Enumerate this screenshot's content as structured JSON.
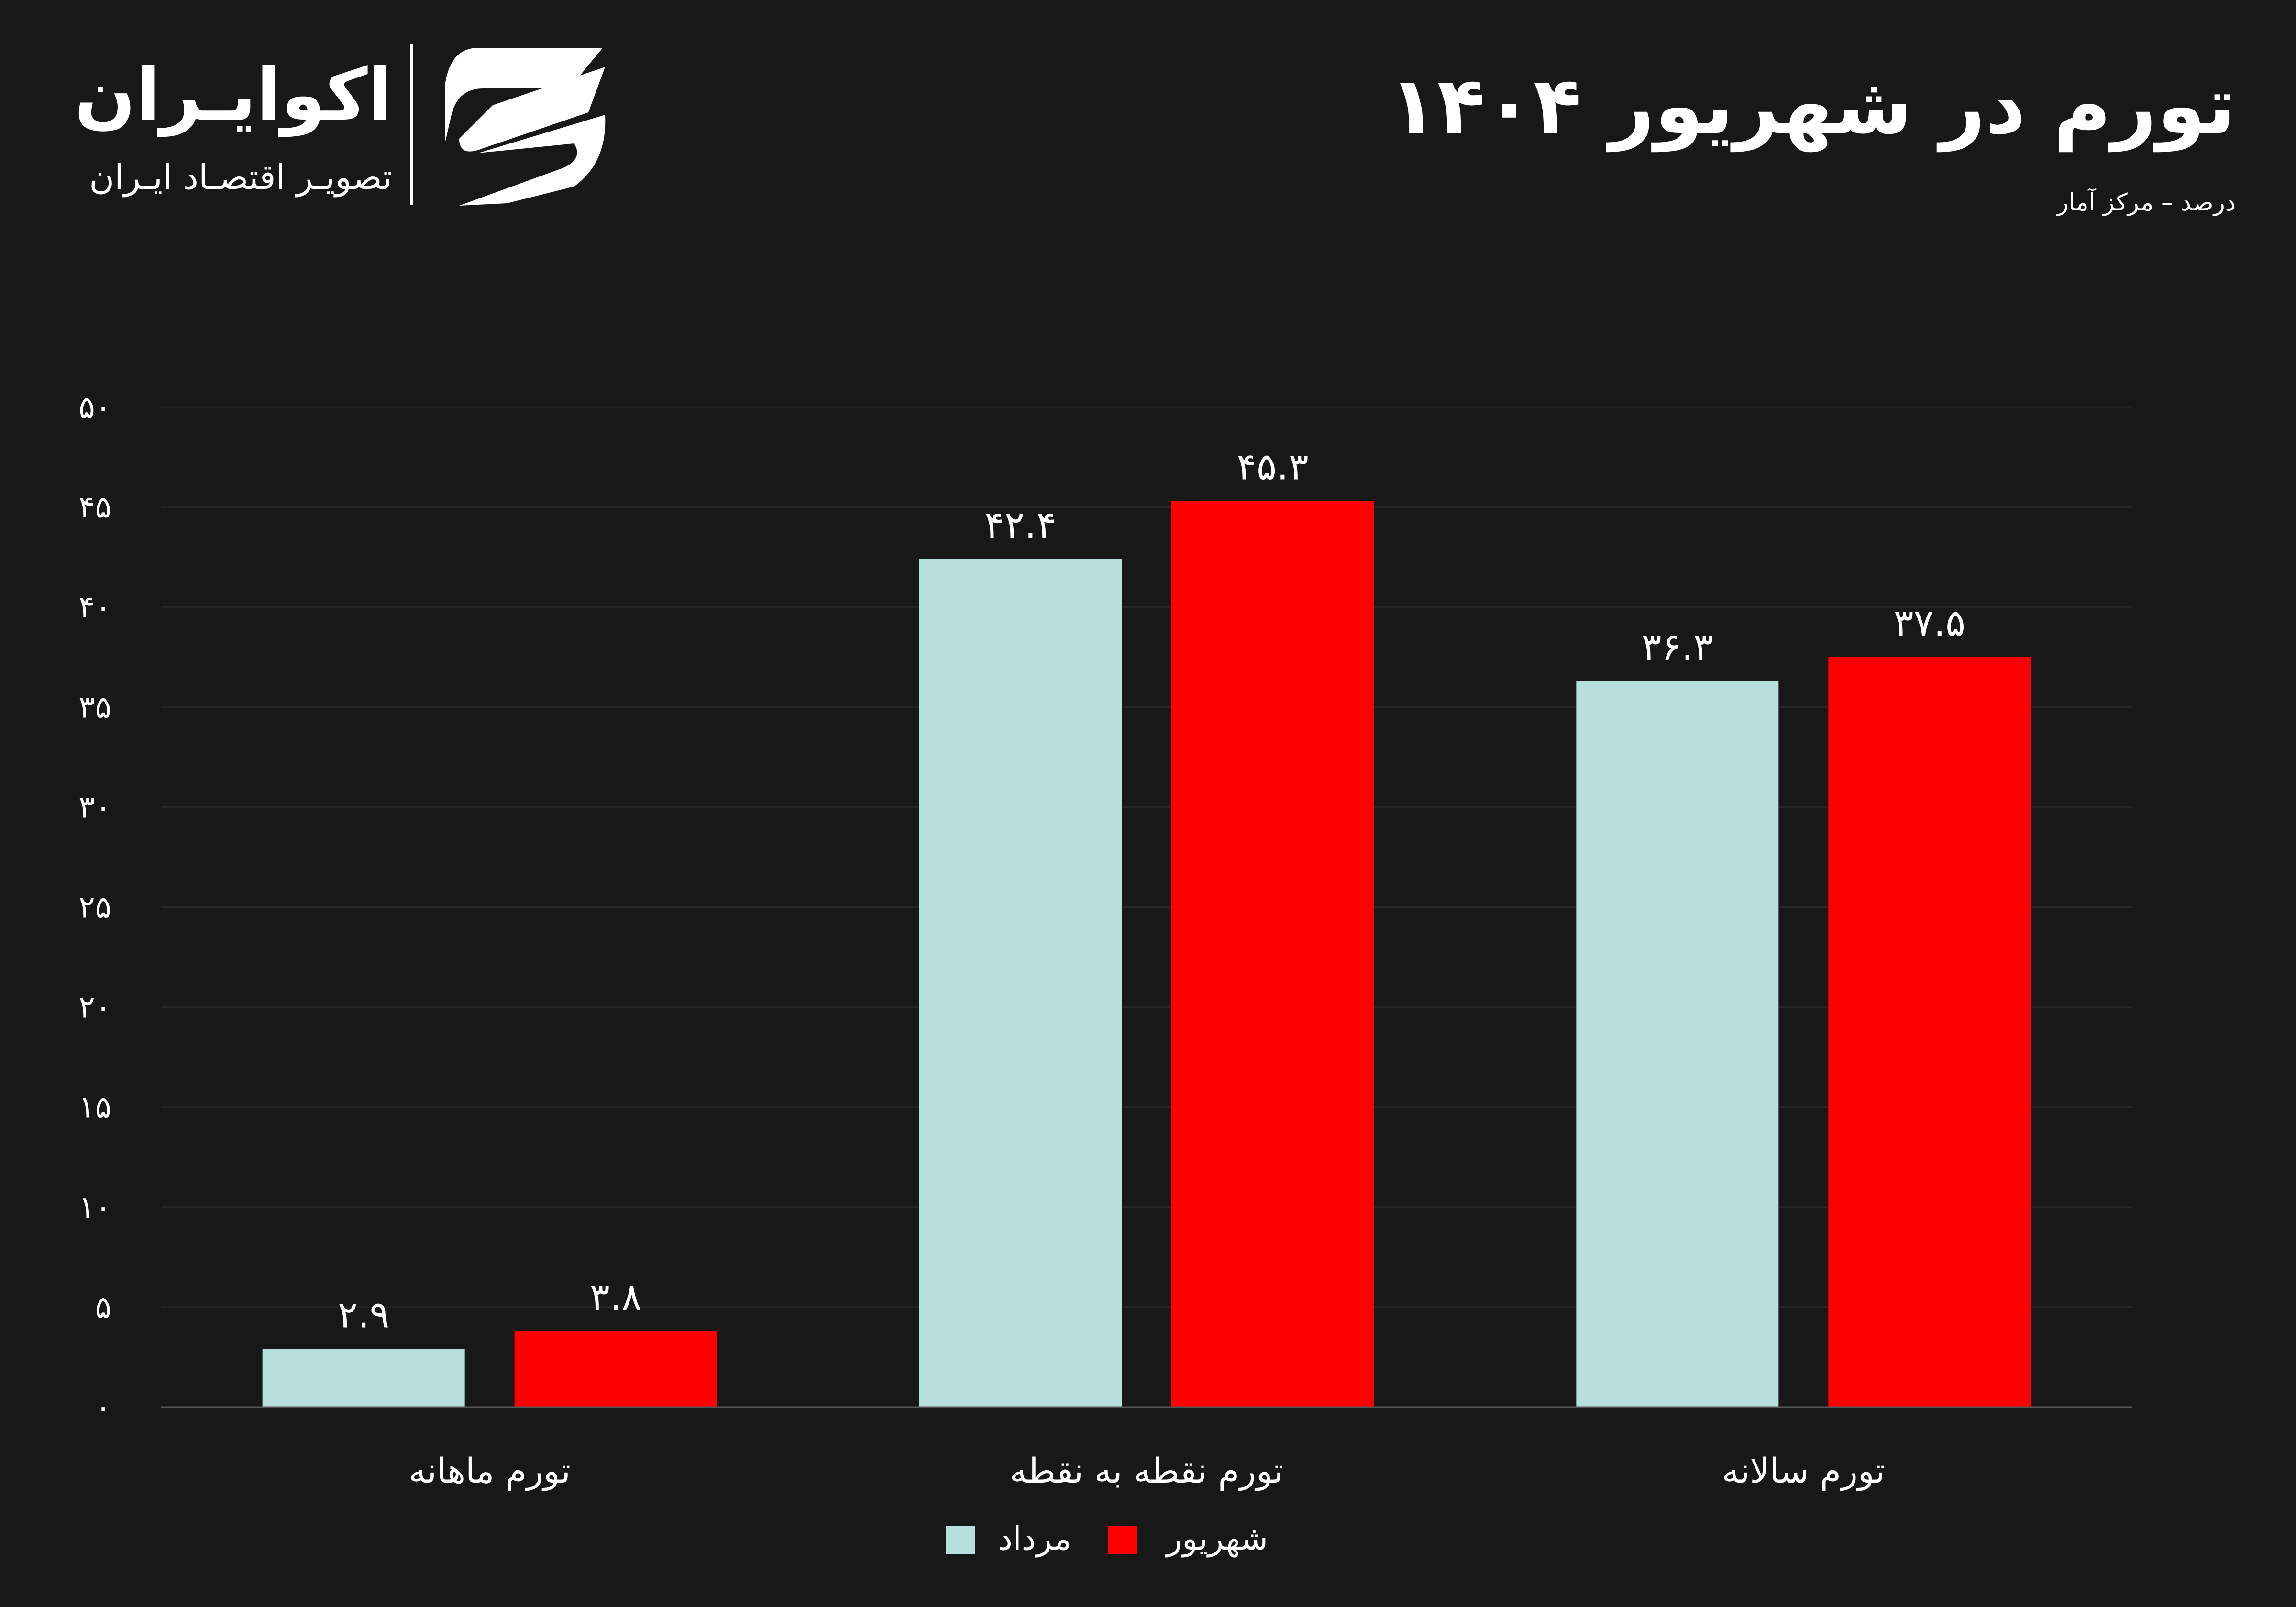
{
  "header": {
    "title": "تورم در شهریور ۱۴۰۴",
    "subtitle": "درصد – مرکز آمار"
  },
  "logo": {
    "name": "اکوایـران",
    "tagline": "تصویـر اقتصـاد ایـران"
  },
  "colors": {
    "background": "#181818",
    "mordad": "#b7dfdc",
    "shahrivar": "#ff0000",
    "grid": "#262626"
  },
  "chart_data": {
    "type": "bar",
    "title": "تورم در شهریور ۱۴۰۴",
    "subtitle": "درصد – مرکز آمار",
    "categories": [
      "تورم ماهانه",
      "تورم نقطه به نقطه",
      "تورم سالانه"
    ],
    "series": [
      {
        "name": "مرداد",
        "values": [
          2.9,
          42.4,
          36.3
        ],
        "labels": [
          "۲.۹",
          "۴۲.۴",
          "۳۶.۳"
        ]
      },
      {
        "name": "شهریور",
        "values": [
          3.8,
          45.3,
          37.5
        ],
        "labels": [
          "۳.۸",
          "۴۵.۳",
          "۳۷.۵"
        ]
      }
    ],
    "ylim": [
      0,
      50
    ],
    "yticks": [
      0,
      5,
      10,
      15,
      20,
      25,
      30,
      35,
      40,
      45,
      50
    ],
    "ytick_labels": [
      "۰",
      "۵",
      "۱۰",
      "۱۵",
      "۲۰",
      "۲۵",
      "۳۰",
      "۳۵",
      "۴۰",
      "۴۵",
      "۵۰"
    ],
    "grid": true,
    "legend": "bottom-center"
  }
}
